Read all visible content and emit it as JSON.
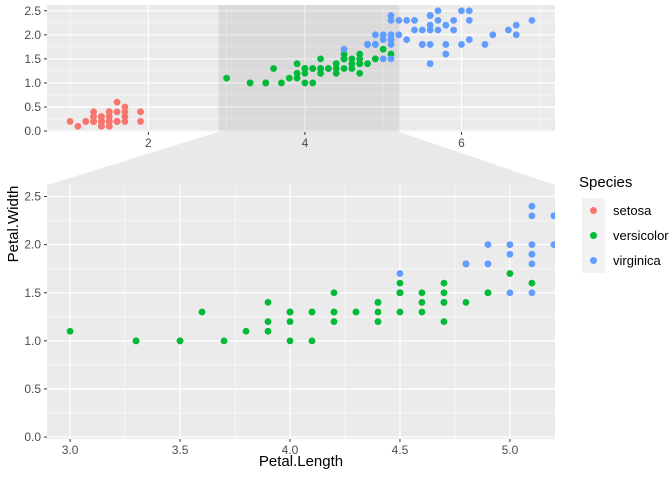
{
  "figure": {
    "background": "#FFFFFF",
    "panel_bg": "#EBEBEB",
    "grid_major": "#FFFFFF",
    "grid_minor": "#FFFFFF",
    "grid_minor_opacity": 0.5,
    "tick_color": "#333333",
    "tick_label_color": "#4D4D4D",
    "zoom_shade": "rgba(0,0,0,0.07)",
    "connector_fill": "#E9E9E9"
  },
  "legend": {
    "title": "Species",
    "key_bg": "#F2F2F2",
    "items": [
      {
        "label": "setosa",
        "color": "#F8766D"
      },
      {
        "label": "versicolor",
        "color": "#00BA38"
      },
      {
        "label": "virginica",
        "color": "#619CFF"
      }
    ]
  },
  "chart_data": {
    "type": "scatter",
    "title": "",
    "xlabel": "Petal.Length",
    "ylabel": "Petal.Width",
    "legend_title": "Species",
    "legend_position": "right",
    "grid": true,
    "point_radius": 3.4,
    "zoom_region_x": [
      2.895,
      5.205
    ],
    "panels": {
      "overview": {
        "x_domain": [
          0.705,
          7.195
        ],
        "y_domain": [
          -0.02,
          2.62
        ],
        "x_tick_values": [
          2,
          4,
          6
        ],
        "x_tick_labels": [
          "2",
          "4",
          "6"
        ],
        "x_minor": [
          1,
          3,
          5,
          7
        ],
        "y_tick_values": [
          0,
          0.5,
          1,
          1.5,
          2,
          2.5
        ],
        "y_tick_labels": [
          "0.0",
          "0.5",
          "1.0",
          "1.5",
          "2.0",
          "2.5"
        ],
        "y_minor": [
          0.25,
          0.75,
          1.25,
          1.75,
          2.25
        ]
      },
      "zoom": {
        "x_domain": [
          2.895,
          5.205
        ],
        "y_domain": [
          -0.02,
          2.62
        ],
        "x_tick_values": [
          3,
          3.5,
          4,
          4.5,
          5
        ],
        "x_tick_labels": [
          "3.0",
          "3.5",
          "4.0",
          "4.5",
          "5.0"
        ],
        "x_minor": [
          3.25,
          3.75,
          4.25,
          4.75
        ],
        "y_tick_values": [
          0,
          0.5,
          1,
          1.5,
          2,
          2.5
        ],
        "y_tick_labels": [
          "0.0",
          "0.5",
          "1.0",
          "1.5",
          "2.0",
          "2.5"
        ],
        "y_minor": [
          0.25,
          0.75,
          1.25,
          1.75,
          2.25
        ]
      }
    },
    "series": [
      {
        "name": "setosa",
        "color": "#F8766D",
        "points": [
          [
            1.4,
            0.2
          ],
          [
            1.4,
            0.2
          ],
          [
            1.3,
            0.2
          ],
          [
            1.5,
            0.2
          ],
          [
            1.4,
            0.2
          ],
          [
            1.7,
            0.4
          ],
          [
            1.4,
            0.3
          ],
          [
            1.5,
            0.2
          ],
          [
            1.4,
            0.2
          ],
          [
            1.5,
            0.1
          ],
          [
            1.5,
            0.2
          ],
          [
            1.6,
            0.2
          ],
          [
            1.4,
            0.1
          ],
          [
            1.1,
            0.1
          ],
          [
            1.2,
            0.2
          ],
          [
            1.5,
            0.4
          ],
          [
            1.3,
            0.4
          ],
          [
            1.4,
            0.3
          ],
          [
            1.7,
            0.3
          ],
          [
            1.5,
            0.3
          ],
          [
            1.7,
            0.2
          ],
          [
            1.5,
            0.4
          ],
          [
            1.0,
            0.2
          ],
          [
            1.7,
            0.5
          ],
          [
            1.9,
            0.2
          ],
          [
            1.6,
            0.2
          ],
          [
            1.6,
            0.4
          ],
          [
            1.5,
            0.2
          ],
          [
            1.4,
            0.2
          ],
          [
            1.6,
            0.2
          ],
          [
            1.6,
            0.2
          ],
          [
            1.5,
            0.4
          ],
          [
            1.5,
            0.1
          ],
          [
            1.4,
            0.2
          ],
          [
            1.5,
            0.2
          ],
          [
            1.2,
            0.2
          ],
          [
            1.3,
            0.2
          ],
          [
            1.4,
            0.1
          ],
          [
            1.3,
            0.2
          ],
          [
            1.5,
            0.2
          ],
          [
            1.3,
            0.3
          ],
          [
            1.3,
            0.3
          ],
          [
            1.3,
            0.2
          ],
          [
            1.6,
            0.6
          ],
          [
            1.9,
            0.4
          ],
          [
            1.4,
            0.3
          ],
          [
            1.6,
            0.2
          ],
          [
            1.4,
            0.2
          ],
          [
            1.5,
            0.2
          ],
          [
            1.4,
            0.2
          ]
        ]
      },
      {
        "name": "versicolor",
        "color": "#00BA38",
        "points": [
          [
            4.7,
            1.4
          ],
          [
            4.5,
            1.5
          ],
          [
            4.9,
            1.5
          ],
          [
            4.0,
            1.3
          ],
          [
            4.6,
            1.5
          ],
          [
            4.5,
            1.3
          ],
          [
            4.7,
            1.6
          ],
          [
            3.3,
            1.0
          ],
          [
            4.6,
            1.3
          ],
          [
            3.9,
            1.4
          ],
          [
            3.5,
            1.0
          ],
          [
            4.2,
            1.5
          ],
          [
            4.0,
            1.0
          ],
          [
            4.7,
            1.4
          ],
          [
            3.6,
            1.3
          ],
          [
            4.4,
            1.4
          ],
          [
            4.5,
            1.5
          ],
          [
            4.1,
            1.0
          ],
          [
            4.5,
            1.5
          ],
          [
            3.9,
            1.1
          ],
          [
            4.8,
            1.8
          ],
          [
            4.0,
            1.3
          ],
          [
            4.9,
            1.5
          ],
          [
            4.7,
            1.2
          ],
          [
            4.3,
            1.3
          ],
          [
            4.4,
            1.4
          ],
          [
            4.8,
            1.4
          ],
          [
            5.0,
            1.7
          ],
          [
            4.5,
            1.5
          ],
          [
            3.5,
            1.0
          ],
          [
            3.8,
            1.1
          ],
          [
            3.7,
            1.0
          ],
          [
            3.9,
            1.2
          ],
          [
            5.1,
            1.6
          ],
          [
            4.5,
            1.5
          ],
          [
            4.5,
            1.6
          ],
          [
            4.7,
            1.5
          ],
          [
            4.4,
            1.3
          ],
          [
            4.1,
            1.3
          ],
          [
            4.0,
            1.3
          ],
          [
            4.4,
            1.2
          ],
          [
            4.6,
            1.4
          ],
          [
            4.0,
            1.2
          ],
          [
            3.3,
            1.0
          ],
          [
            4.2,
            1.3
          ],
          [
            4.2,
            1.2
          ],
          [
            4.2,
            1.3
          ],
          [
            4.3,
            1.3
          ],
          [
            3.0,
            1.1
          ],
          [
            4.1,
            1.3
          ]
        ]
      },
      {
        "name": "virginica",
        "color": "#619CFF",
        "points": [
          [
            6.0,
            2.5
          ],
          [
            5.1,
            1.9
          ],
          [
            5.9,
            2.1
          ],
          [
            5.6,
            1.8
          ],
          [
            5.8,
            2.2
          ],
          [
            6.6,
            2.1
          ],
          [
            4.5,
            1.7
          ],
          [
            6.3,
            1.8
          ],
          [
            5.8,
            1.8
          ],
          [
            6.1,
            2.5
          ],
          [
            5.1,
            2.0
          ],
          [
            5.3,
            1.9
          ],
          [
            5.5,
            2.1
          ],
          [
            5.0,
            2.0
          ],
          [
            5.1,
            2.4
          ],
          [
            5.3,
            2.3
          ],
          [
            5.5,
            1.8
          ],
          [
            6.7,
            2.2
          ],
          [
            6.9,
            2.3
          ],
          [
            5.0,
            1.5
          ],
          [
            5.7,
            2.3
          ],
          [
            4.9,
            2.0
          ],
          [
            6.7,
            2.0
          ],
          [
            4.9,
            1.8
          ],
          [
            5.7,
            2.1
          ],
          [
            6.0,
            1.8
          ],
          [
            4.8,
            1.8
          ],
          [
            4.9,
            1.8
          ],
          [
            5.6,
            2.1
          ],
          [
            5.8,
            1.6
          ],
          [
            6.1,
            1.9
          ],
          [
            6.4,
            2.0
          ],
          [
            5.6,
            2.2
          ],
          [
            5.1,
            1.5
          ],
          [
            5.6,
            1.4
          ],
          [
            6.1,
            2.3
          ],
          [
            5.6,
            2.4
          ],
          [
            5.5,
            1.8
          ],
          [
            4.8,
            1.8
          ],
          [
            5.4,
            2.1
          ],
          [
            5.6,
            2.4
          ],
          [
            5.1,
            2.3
          ],
          [
            5.1,
            1.9
          ],
          [
            5.9,
            2.3
          ],
          [
            5.7,
            2.5
          ],
          [
            5.2,
            2.3
          ],
          [
            5.0,
            1.9
          ],
          [
            5.2,
            2.0
          ],
          [
            5.4,
            2.3
          ],
          [
            5.1,
            1.8
          ]
        ]
      }
    ]
  }
}
